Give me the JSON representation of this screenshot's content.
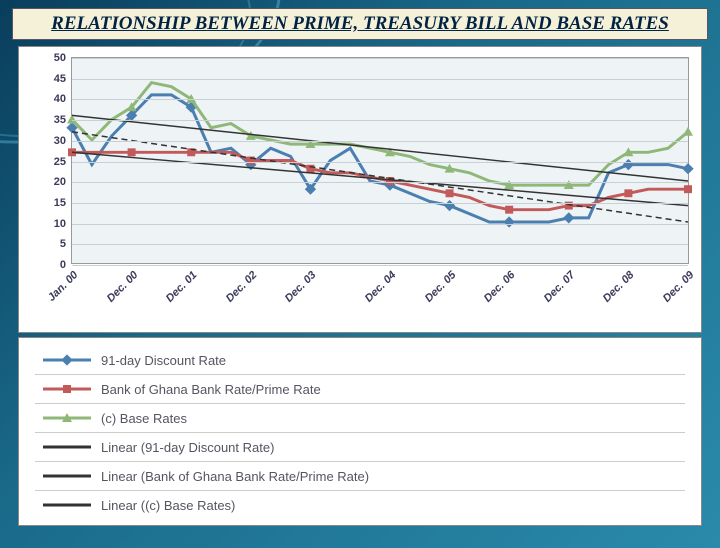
{
  "title": "RELATIONSHIP BETWEEN PRIME, TREASURY BILL AND BASE RATES",
  "chart": {
    "type": "line",
    "background_color": "#eef3f6",
    "grid_color": "#c8d0d6",
    "ylim": [
      0,
      50
    ],
    "ytick_step": 5,
    "yticks": [
      0,
      5,
      10,
      15,
      20,
      25,
      30,
      35,
      40,
      45,
      50
    ],
    "xlabels": [
      "Jan. 00",
      "Dec. 00",
      "Dec. 01",
      "Dec. 02",
      "Dec. 03",
      "Dec. 04",
      "Dec. 05",
      "Dec. 06",
      "Dec. 07",
      "Dec. 08",
      "Dec. 09"
    ],
    "series": [
      {
        "name": "91-day Discount Rate",
        "color": "#4a7fb0",
        "marker": "diamond",
        "marker_color": "#4a7fb0",
        "line_width": 3,
        "values_11": [
          33,
          41,
          28,
          26,
          28,
          17,
          12,
          10,
          11,
          24,
          23
        ],
        "full_values": [
          33,
          24,
          31,
          36,
          41,
          41,
          38,
          27,
          28,
          24,
          28,
          26,
          18,
          25,
          28,
          20,
          19,
          17,
          15,
          14,
          12,
          10,
          10,
          10,
          10,
          11,
          11,
          22,
          24,
          24,
          24,
          23
        ]
      },
      {
        "name": "Bank of Ghana Bank Rate/Prime Rate",
        "color": "#c25a5a",
        "marker": "square",
        "marker_color": "#c25a5a",
        "line_width": 3,
        "values_11": [
          27,
          27,
          27,
          25,
          22,
          19,
          16,
          13,
          14,
          17,
          18
        ],
        "full_values": [
          27,
          27,
          27,
          27,
          27,
          27,
          27,
          27,
          27,
          25,
          25,
          25,
          23,
          22,
          22,
          21,
          20,
          19,
          18,
          17,
          16,
          14,
          13,
          13,
          13,
          14,
          14,
          16,
          17,
          18,
          18,
          18
        ]
      },
      {
        "name": "(c) Base Rates",
        "color": "#8fb878",
        "marker": "triangle",
        "marker_color": "#8fb878",
        "line_width": 3,
        "values_11": [
          35,
          44,
          34,
          30,
          29,
          26,
          22,
          19,
          19,
          27,
          32
        ],
        "full_values": [
          35,
          30,
          35,
          38,
          44,
          43,
          40,
          33,
          34,
          31,
          30,
          29,
          29,
          29,
          29,
          28,
          27,
          26,
          24,
          23,
          22,
          20,
          19,
          19,
          19,
          19,
          19,
          24,
          27,
          27,
          28,
          32
        ]
      }
    ],
    "trendlines": [
      {
        "name": "Linear (91-day Discount Rate)",
        "color": "#333",
        "dash": "6,4",
        "width": 1.5,
        "y_start": 32,
        "y_end": 10
      },
      {
        "name": "Linear (Bank of Ghana Bank Rate/Prime Rate)",
        "color": "#333",
        "dash": "none",
        "width": 1.5,
        "y_start": 27,
        "y_end": 14
      },
      {
        "name": "Linear ((c) Base Rates)",
        "color": "#333",
        "dash": "none",
        "width": 1.5,
        "y_start": 36,
        "y_end": 20
      }
    ]
  },
  "legend": [
    {
      "label": "91-day Discount Rate",
      "color": "#4a7fb0",
      "marker": "diamond"
    },
    {
      "label": "Bank of Ghana Bank Rate/Prime Rate",
      "color": "#c25a5a",
      "marker": "square"
    },
    {
      "label": "(c) Base Rates",
      "color": "#8fb878",
      "marker": "triangle"
    },
    {
      "label": "Linear (91-day Discount Rate)",
      "color": "#333",
      "marker": "line"
    },
    {
      "label": "Linear (Bank of Ghana Bank Rate/Prime Rate)",
      "color": "#333",
      "marker": "line"
    },
    {
      "label": "Linear ((c) Base Rates)",
      "color": "#333",
      "marker": "line"
    }
  ]
}
